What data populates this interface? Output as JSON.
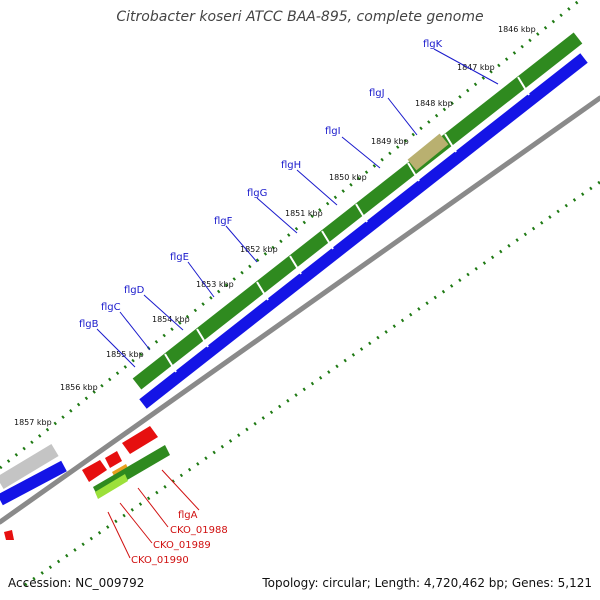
{
  "title": "Citrobacter koseri ATCC BAA-895, complete genome",
  "footer": {
    "accession": "Accession: NC_009792",
    "stats": "Topology: circular; Length: 4,720,462 bp; Genes: 5,121"
  },
  "colors": {
    "green": "#2f8a1f",
    "blue": "#1414e6",
    "red": "#e60f0f",
    "gray": "#c4c4c4",
    "label_blue": "#1a1acc",
    "label_red": "#d01010",
    "tick_green": "#1f7a14"
  },
  "ticks": [
    "1846 kbp",
    "1847 kbp",
    "1848 kbp",
    "1849 kbp",
    "1850 kbp",
    "1851 kbp",
    "1852 kbp",
    "1853 kbp",
    "1854 kbp",
    "1855 kbp",
    "1856 kbp",
    "1857 kbp"
  ],
  "blue_labels": [
    "flgK",
    "flgJ",
    "flgI",
    "flgH",
    "flgG",
    "flgF",
    "flgE",
    "flgD",
    "flgC",
    "flgB"
  ],
  "red_labels": [
    "flgA",
    "CKO_01988",
    "CKO_01989",
    "CKO_01990"
  ]
}
